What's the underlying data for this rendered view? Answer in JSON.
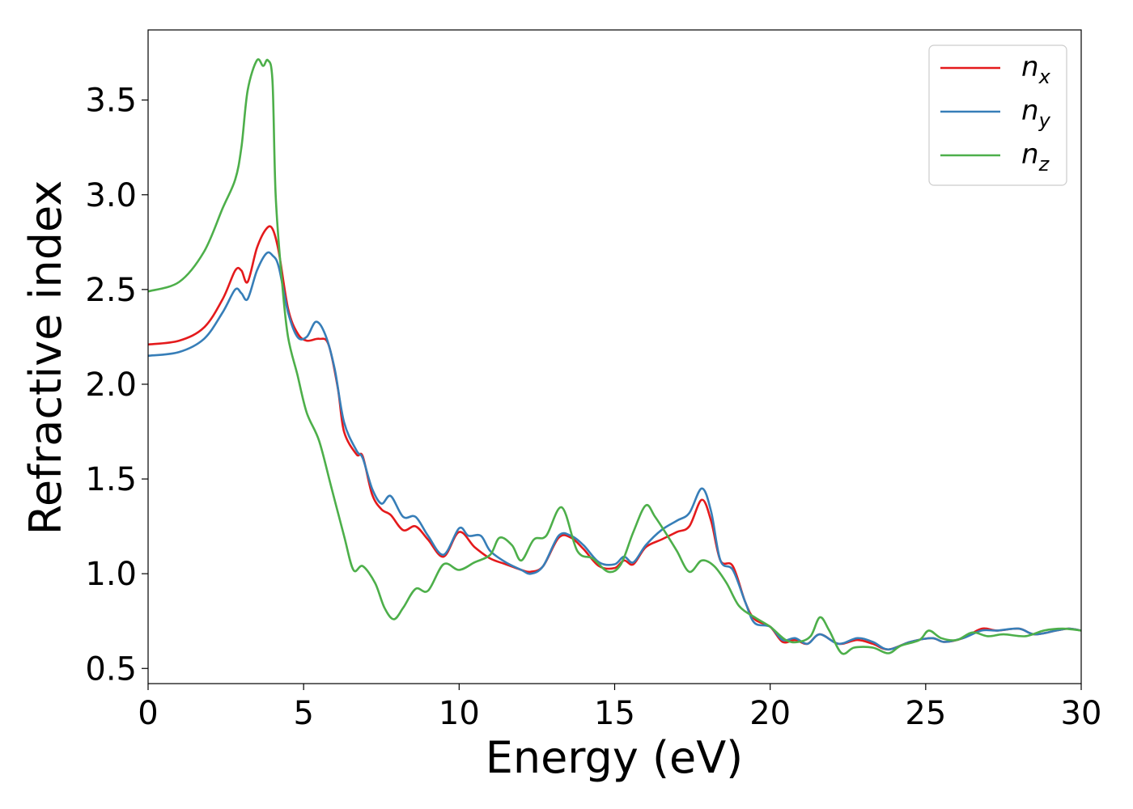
{
  "chart_data": {
    "type": "line",
    "xlabel": "Energy (eV)",
    "ylabel": "Refractive index",
    "xlim": [
      0,
      30
    ],
    "ylim": [
      0.42,
      3.87
    ],
    "xticks": [
      "0",
      "5",
      "10",
      "15",
      "20",
      "25",
      "30"
    ],
    "yticks": [
      "0.5",
      "1.0",
      "1.5",
      "2.0",
      "2.5",
      "3.0",
      "3.5"
    ],
    "grid": false,
    "legend_position": "top-right",
    "series": [
      {
        "name": "n",
        "subscript": "x",
        "color": "#e41a1c",
        "points": [
          [
            0,
            2.21
          ],
          [
            1,
            2.23
          ],
          [
            1.8,
            2.3
          ],
          [
            2.4,
            2.45
          ],
          [
            2.8,
            2.6
          ],
          [
            3.0,
            2.6
          ],
          [
            3.2,
            2.54
          ],
          [
            3.5,
            2.72
          ],
          [
            3.8,
            2.82
          ],
          [
            4.0,
            2.82
          ],
          [
            4.2,
            2.7
          ],
          [
            4.5,
            2.4
          ],
          [
            4.8,
            2.27
          ],
          [
            5.1,
            2.23
          ],
          [
            5.5,
            2.24
          ],
          [
            5.8,
            2.21
          ],
          [
            6.1,
            1.98
          ],
          [
            6.3,
            1.75
          ],
          [
            6.7,
            1.63
          ],
          [
            6.9,
            1.62
          ],
          [
            7.2,
            1.42
          ],
          [
            7.5,
            1.34
          ],
          [
            7.8,
            1.31
          ],
          [
            8.2,
            1.23
          ],
          [
            8.6,
            1.25
          ],
          [
            9.0,
            1.18
          ],
          [
            9.5,
            1.09
          ],
          [
            10.0,
            1.22
          ],
          [
            10.5,
            1.14
          ],
          [
            11.0,
            1.08
          ],
          [
            11.5,
            1.05
          ],
          [
            12.0,
            1.02
          ],
          [
            12.3,
            1.01
          ],
          [
            12.7,
            1.04
          ],
          [
            13.2,
            1.19
          ],
          [
            13.6,
            1.19
          ],
          [
            14.0,
            1.13
          ],
          [
            14.5,
            1.04
          ],
          [
            15.0,
            1.03
          ],
          [
            15.3,
            1.07
          ],
          [
            15.6,
            1.05
          ],
          [
            16.0,
            1.14
          ],
          [
            16.5,
            1.18
          ],
          [
            17.0,
            1.22
          ],
          [
            17.4,
            1.25
          ],
          [
            17.8,
            1.39
          ],
          [
            18.1,
            1.28
          ],
          [
            18.4,
            1.07
          ],
          [
            18.8,
            1.04
          ],
          [
            19.2,
            0.85
          ],
          [
            19.5,
            0.76
          ],
          [
            20.0,
            0.72
          ],
          [
            20.4,
            0.64
          ],
          [
            20.8,
            0.65
          ],
          [
            21.2,
            0.63
          ],
          [
            21.6,
            0.68
          ],
          [
            22.2,
            0.63
          ],
          [
            22.8,
            0.65
          ],
          [
            23.3,
            0.63
          ],
          [
            23.8,
            0.6
          ],
          [
            24.5,
            0.64
          ],
          [
            25.2,
            0.66
          ],
          [
            25.6,
            0.64
          ],
          [
            26.2,
            0.66
          ],
          [
            26.8,
            0.71
          ],
          [
            27.3,
            0.7
          ],
          [
            28.0,
            0.71
          ],
          [
            28.5,
            0.68
          ],
          [
            29.2,
            0.7
          ],
          [
            29.6,
            0.71
          ],
          [
            30,
            0.7
          ]
        ]
      },
      {
        "name": "n",
        "subscript": "y",
        "color": "#377eb8",
        "points": [
          [
            0,
            2.15
          ],
          [
            1,
            2.17
          ],
          [
            1.8,
            2.24
          ],
          [
            2.4,
            2.38
          ],
          [
            2.8,
            2.5
          ],
          [
            3.0,
            2.48
          ],
          [
            3.2,
            2.45
          ],
          [
            3.5,
            2.6
          ],
          [
            3.8,
            2.69
          ],
          [
            4.0,
            2.68
          ],
          [
            4.2,
            2.62
          ],
          [
            4.5,
            2.38
          ],
          [
            4.8,
            2.25
          ],
          [
            5.1,
            2.25
          ],
          [
            5.4,
            2.33
          ],
          [
            5.7,
            2.26
          ],
          [
            6.0,
            2.08
          ],
          [
            6.3,
            1.8
          ],
          [
            6.7,
            1.65
          ],
          [
            6.9,
            1.61
          ],
          [
            7.2,
            1.45
          ],
          [
            7.5,
            1.37
          ],
          [
            7.8,
            1.41
          ],
          [
            8.2,
            1.3
          ],
          [
            8.6,
            1.3
          ],
          [
            9.0,
            1.2
          ],
          [
            9.5,
            1.1
          ],
          [
            10.0,
            1.24
          ],
          [
            10.3,
            1.2
          ],
          [
            10.7,
            1.2
          ],
          [
            11.0,
            1.12
          ],
          [
            11.5,
            1.06
          ],
          [
            12.0,
            1.02
          ],
          [
            12.3,
            1.0
          ],
          [
            12.7,
            1.04
          ],
          [
            13.2,
            1.2
          ],
          [
            13.6,
            1.2
          ],
          [
            14.0,
            1.15
          ],
          [
            14.5,
            1.06
          ],
          [
            15.0,
            1.05
          ],
          [
            15.3,
            1.09
          ],
          [
            15.6,
            1.06
          ],
          [
            16.0,
            1.15
          ],
          [
            16.5,
            1.23
          ],
          [
            17.0,
            1.28
          ],
          [
            17.4,
            1.32
          ],
          [
            17.8,
            1.45
          ],
          [
            18.1,
            1.33
          ],
          [
            18.4,
            1.07
          ],
          [
            18.8,
            1.02
          ],
          [
            19.2,
            0.85
          ],
          [
            19.5,
            0.74
          ],
          [
            20.0,
            0.72
          ],
          [
            20.4,
            0.65
          ],
          [
            20.8,
            0.66
          ],
          [
            21.2,
            0.63
          ],
          [
            21.6,
            0.68
          ],
          [
            22.2,
            0.63
          ],
          [
            22.8,
            0.66
          ],
          [
            23.3,
            0.64
          ],
          [
            23.8,
            0.6
          ],
          [
            24.5,
            0.64
          ],
          [
            25.2,
            0.66
          ],
          [
            25.6,
            0.64
          ],
          [
            26.2,
            0.66
          ],
          [
            26.8,
            0.7
          ],
          [
            27.3,
            0.7
          ],
          [
            28.0,
            0.71
          ],
          [
            28.5,
            0.68
          ],
          [
            29.2,
            0.7
          ],
          [
            29.6,
            0.71
          ],
          [
            30,
            0.7
          ]
        ]
      },
      {
        "name": "n",
        "subscript": "z",
        "color": "#4daf4a",
        "points": [
          [
            0,
            2.49
          ],
          [
            1,
            2.54
          ],
          [
            1.8,
            2.7
          ],
          [
            2.4,
            2.93
          ],
          [
            2.8,
            3.08
          ],
          [
            3.0,
            3.25
          ],
          [
            3.2,
            3.55
          ],
          [
            3.5,
            3.71
          ],
          [
            3.7,
            3.68
          ],
          [
            3.85,
            3.71
          ],
          [
            4.0,
            3.6
          ],
          [
            4.1,
            3.0
          ],
          [
            4.3,
            2.55
          ],
          [
            4.5,
            2.25
          ],
          [
            4.8,
            2.05
          ],
          [
            5.1,
            1.85
          ],
          [
            5.5,
            1.7
          ],
          [
            5.9,
            1.45
          ],
          [
            6.3,
            1.2
          ],
          [
            6.6,
            1.02
          ],
          [
            6.9,
            1.04
          ],
          [
            7.3,
            0.95
          ],
          [
            7.6,
            0.82
          ],
          [
            7.9,
            0.76
          ],
          [
            8.2,
            0.82
          ],
          [
            8.6,
            0.92
          ],
          [
            9.0,
            0.91
          ],
          [
            9.5,
            1.05
          ],
          [
            10.0,
            1.02
          ],
          [
            10.5,
            1.06
          ],
          [
            11.0,
            1.1
          ],
          [
            11.3,
            1.19
          ],
          [
            11.7,
            1.15
          ],
          [
            12.0,
            1.07
          ],
          [
            12.4,
            1.18
          ],
          [
            12.8,
            1.2
          ],
          [
            13.3,
            1.35
          ],
          [
            13.8,
            1.12
          ],
          [
            14.3,
            1.08
          ],
          [
            14.8,
            1.01
          ],
          [
            15.2,
            1.05
          ],
          [
            15.6,
            1.22
          ],
          [
            16.0,
            1.36
          ],
          [
            16.3,
            1.3
          ],
          [
            16.7,
            1.2
          ],
          [
            17.0,
            1.12
          ],
          [
            17.4,
            1.01
          ],
          [
            17.8,
            1.07
          ],
          [
            18.2,
            1.04
          ],
          [
            18.6,
            0.95
          ],
          [
            19.0,
            0.83
          ],
          [
            19.5,
            0.77
          ],
          [
            20.0,
            0.72
          ],
          [
            20.5,
            0.65
          ],
          [
            20.9,
            0.64
          ],
          [
            21.3,
            0.67
          ],
          [
            21.6,
            0.77
          ],
          [
            21.9,
            0.7
          ],
          [
            22.3,
            0.58
          ],
          [
            22.7,
            0.61
          ],
          [
            23.3,
            0.61
          ],
          [
            23.8,
            0.58
          ],
          [
            24.2,
            0.62
          ],
          [
            24.8,
            0.65
          ],
          [
            25.1,
            0.7
          ],
          [
            25.5,
            0.66
          ],
          [
            26.0,
            0.65
          ],
          [
            26.5,
            0.69
          ],
          [
            27.0,
            0.67
          ],
          [
            27.5,
            0.68
          ],
          [
            28.2,
            0.67
          ],
          [
            28.8,
            0.7
          ],
          [
            29.4,
            0.71
          ],
          [
            30,
            0.7
          ]
        ]
      }
    ]
  }
}
